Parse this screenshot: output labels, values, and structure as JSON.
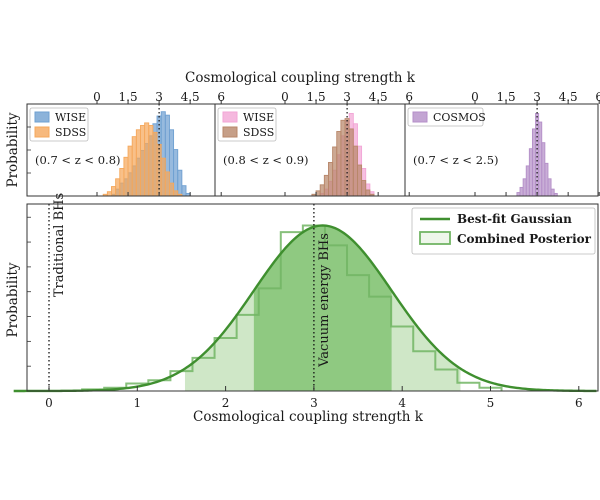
{
  "chart_data": [
    {
      "id": "panel-top-1",
      "type": "histogram",
      "ylabel": "Probability",
      "xlim": [
        0,
        6
      ],
      "xticks": [
        "0",
        "1.5",
        "3",
        "4.5",
        "6"
      ],
      "annotation": "(0.7 < z < 0.8)",
      "reference_line_x": 3,
      "bin_width": 0.2,
      "series": [
        {
          "name": "WISE",
          "color": "#6fa0d1",
          "bins": [
            {
              "x": 0.8,
              "y": 0.02
            },
            {
              "x": 1.0,
              "y": 0.08
            },
            {
              "x": 1.2,
              "y": 0.15
            },
            {
              "x": 1.4,
              "y": 0.2
            },
            {
              "x": 1.6,
              "y": 0.27
            },
            {
              "x": 1.8,
              "y": 0.35
            },
            {
              "x": 2.0,
              "y": 0.44
            },
            {
              "x": 2.2,
              "y": 0.53
            },
            {
              "x": 2.4,
              "y": 0.61
            },
            {
              "x": 2.6,
              "y": 0.7
            },
            {
              "x": 2.8,
              "y": 0.84
            },
            {
              "x": 3.0,
              "y": 0.93
            },
            {
              "x": 3.2,
              "y": 0.98
            },
            {
              "x": 3.4,
              "y": 0.94
            },
            {
              "x": 3.6,
              "y": 0.77
            },
            {
              "x": 3.8,
              "y": 0.54
            },
            {
              "x": 4.0,
              "y": 0.3
            },
            {
              "x": 4.2,
              "y": 0.12
            },
            {
              "x": 4.4,
              "y": 0.03
            }
          ]
        },
        {
          "name": "SDSS",
          "color": "#f5a85c",
          "bins": [
            {
              "x": 0.4,
              "y": 0.02
            },
            {
              "x": 0.6,
              "y": 0.05
            },
            {
              "x": 0.8,
              "y": 0.11
            },
            {
              "x": 1.0,
              "y": 0.2
            },
            {
              "x": 1.2,
              "y": 0.32
            },
            {
              "x": 1.4,
              "y": 0.45
            },
            {
              "x": 1.6,
              "y": 0.58
            },
            {
              "x": 1.8,
              "y": 0.69
            },
            {
              "x": 2.0,
              "y": 0.77
            },
            {
              "x": 2.2,
              "y": 0.82
            },
            {
              "x": 2.4,
              "y": 0.85
            },
            {
              "x": 2.6,
              "y": 0.82
            },
            {
              "x": 2.8,
              "y": 0.74
            },
            {
              "x": 3.0,
              "y": 0.6
            },
            {
              "x": 3.2,
              "y": 0.44
            },
            {
              "x": 3.4,
              "y": 0.28
            },
            {
              "x": 3.6,
              "y": 0.15
            },
            {
              "x": 3.8,
              "y": 0.06
            },
            {
              "x": 4.0,
              "y": 0.02
            }
          ]
        }
      ]
    },
    {
      "id": "panel-top-2",
      "type": "histogram",
      "xlim": [
        0,
        6
      ],
      "xticks": [
        "0",
        "1.5",
        "3",
        "4.5",
        "6"
      ],
      "annotation": "(0.8 < z < 0.9)",
      "reference_line_x": 3,
      "bin_width": 0.2,
      "series": [
        {
          "name": "WISE",
          "color": "#f2a6d6",
          "bins": [
            {
              "x": 1.8,
              "y": 0.03
            },
            {
              "x": 2.0,
              "y": 0.08
            },
            {
              "x": 2.2,
              "y": 0.17
            },
            {
              "x": 2.4,
              "y": 0.3
            },
            {
              "x": 2.6,
              "y": 0.48
            },
            {
              "x": 2.8,
              "y": 0.7
            },
            {
              "x": 3.0,
              "y": 0.88
            },
            {
              "x": 3.2,
              "y": 0.96
            },
            {
              "x": 3.4,
              "y": 0.84
            },
            {
              "x": 3.6,
              "y": 0.58
            },
            {
              "x": 3.8,
              "y": 0.32
            },
            {
              "x": 4.0,
              "y": 0.14
            },
            {
              "x": 4.2,
              "y": 0.05
            }
          ]
        },
        {
          "name": "SDSS",
          "color": "#b8876a",
          "bins": [
            {
              "x": 1.4,
              "y": 0.02
            },
            {
              "x": 1.6,
              "y": 0.06
            },
            {
              "x": 1.8,
              "y": 0.13
            },
            {
              "x": 2.0,
              "y": 0.24
            },
            {
              "x": 2.2,
              "y": 0.39
            },
            {
              "x": 2.4,
              "y": 0.57
            },
            {
              "x": 2.6,
              "y": 0.75
            },
            {
              "x": 2.8,
              "y": 0.88
            },
            {
              "x": 3.0,
              "y": 0.9
            },
            {
              "x": 3.2,
              "y": 0.78
            },
            {
              "x": 3.4,
              "y": 0.58
            },
            {
              "x": 3.6,
              "y": 0.36
            },
            {
              "x": 3.8,
              "y": 0.18
            },
            {
              "x": 4.0,
              "y": 0.07
            },
            {
              "x": 4.2,
              "y": 0.02
            }
          ]
        }
      ]
    },
    {
      "id": "panel-top-3",
      "type": "histogram",
      "xlim": [
        0,
        6
      ],
      "xticks": [
        "0",
        "1.5",
        "3",
        "4.5",
        "6"
      ],
      "annotation": "(0.7 < z < 2.5)",
      "reference_line_x": 3,
      "bin_width": 0.15,
      "series": [
        {
          "name": "COSMOS",
          "color": "#b48fc8",
          "bins": [
            {
              "x": 2.1,
              "y": 0.04
            },
            {
              "x": 2.25,
              "y": 0.1
            },
            {
              "x": 2.4,
              "y": 0.2
            },
            {
              "x": 2.55,
              "y": 0.35
            },
            {
              "x": 2.7,
              "y": 0.55
            },
            {
              "x": 2.85,
              "y": 0.78
            },
            {
              "x": 3.0,
              "y": 0.96
            },
            {
              "x": 3.15,
              "y": 0.86
            },
            {
              "x": 3.3,
              "y": 0.62
            },
            {
              "x": 3.45,
              "y": 0.38
            },
            {
              "x": 3.6,
              "y": 0.2
            },
            {
              "x": 3.75,
              "y": 0.08
            },
            {
              "x": 3.9,
              "y": 0.03
            }
          ]
        }
      ]
    },
    {
      "id": "panel-bottom",
      "type": "histogram+line",
      "xlabel": "Cosmological coupling strength k",
      "ylabel": "Probability",
      "xlim": [
        -0.4,
        6.2
      ],
      "ylim": [
        0,
        1.13
      ],
      "xticks": [
        "0",
        "1",
        "2",
        "3",
        "4",
        "5",
        "6"
      ],
      "legend_position": "top-right",
      "reference_lines": [
        {
          "x": 0,
          "label": "Traditional BHs"
        },
        {
          "x": 3,
          "label": "Vacuum energy BHs"
        }
      ],
      "gaussian": {
        "name": "Best-fit Gaussian",
        "mean": 3.1,
        "sigma": 0.78,
        "color": "#3f8f2f"
      },
      "credible_bands": [
        {
          "from": 2.32,
          "to": 3.88,
          "level": "1-sigma",
          "color": "#8fc981"
        },
        {
          "from": 1.54,
          "to": 4.66,
          "level": "2-sigma",
          "color": "#cfe7c7"
        }
      ],
      "posterior": {
        "name": "Combined Posterior",
        "color": "#72b564",
        "bin_width": 0.25,
        "bins": [
          {
            "x": 0.5,
            "y": 0.01
          },
          {
            "x": 0.75,
            "y": 0.02
          },
          {
            "x": 1.0,
            "y": 0.045
          },
          {
            "x": 1.25,
            "y": 0.065
          },
          {
            "x": 1.5,
            "y": 0.12
          },
          {
            "x": 1.75,
            "y": 0.2
          },
          {
            "x": 2.0,
            "y": 0.32
          },
          {
            "x": 2.25,
            "y": 0.46
          },
          {
            "x": 2.5,
            "y": 0.62
          },
          {
            "x": 2.75,
            "y": 0.96
          },
          {
            "x": 3.0,
            "y": 1.0
          },
          {
            "x": 3.25,
            "y": 0.88
          },
          {
            "x": 3.5,
            "y": 0.7
          },
          {
            "x": 3.75,
            "y": 0.57
          },
          {
            "x": 4.0,
            "y": 0.39
          },
          {
            "x": 4.25,
            "y": 0.24
          },
          {
            "x": 4.5,
            "y": 0.13
          },
          {
            "x": 4.75,
            "y": 0.05
          },
          {
            "x": 5.0,
            "y": 0.02
          }
        ]
      }
    }
  ],
  "top_xlabel": "Cosmological coupling strength k"
}
